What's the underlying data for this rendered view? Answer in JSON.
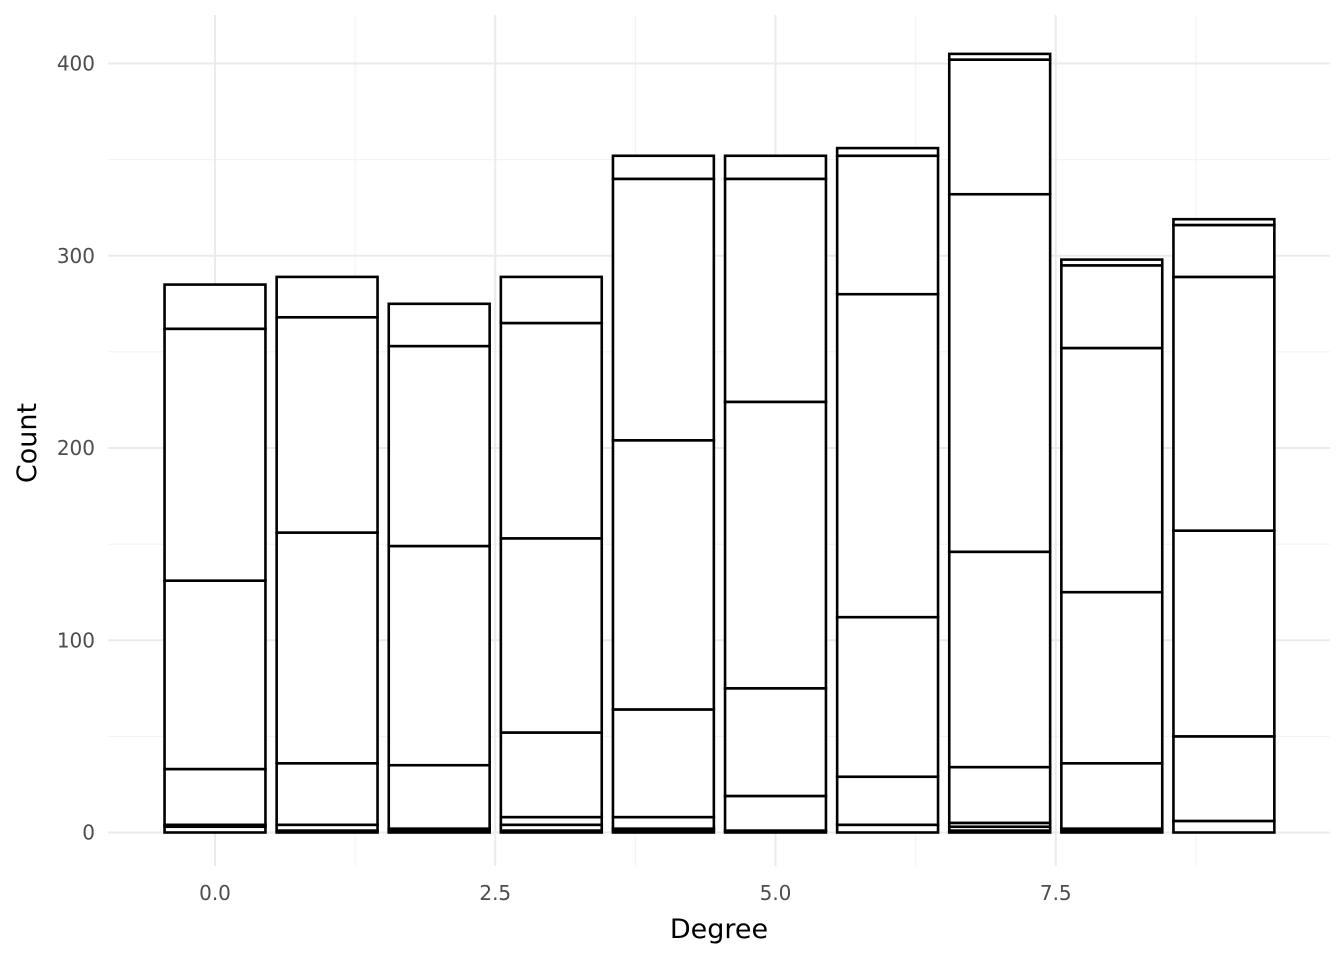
{
  "chart_data": {
    "type": "bar",
    "stacked": true,
    "xlabel": "Degree",
    "ylabel": "Count",
    "xlim": [
      -0.95,
      9.95
    ],
    "ylim": [
      -18,
      400
    ],
    "x_ticks": [
      0.0,
      2.5,
      5.0,
      7.5
    ],
    "x_tick_labels": [
      "0.0",
      "2.5",
      "5.0",
      "7.5"
    ],
    "y_ticks": [
      0,
      100,
      200,
      300,
      400
    ],
    "y_tick_labels": [
      "0",
      "100",
      "200",
      "300",
      "400"
    ],
    "grid": true,
    "bar_fill": "#ffffff",
    "bar_outline": "#000000",
    "bars": [
      {
        "x": 0,
        "stack_boundaries": [
          0,
          3,
          4,
          33,
          131,
          262,
          285
        ]
      },
      {
        "x": 1,
        "stack_boundaries": [
          0,
          1,
          4,
          36,
          156,
          268,
          289
        ]
      },
      {
        "x": 2,
        "stack_boundaries": [
          0,
          1,
          2,
          35,
          149,
          253,
          275
        ]
      },
      {
        "x": 3,
        "stack_boundaries": [
          0,
          1,
          4,
          8,
          52,
          153,
          265,
          289
        ]
      },
      {
        "x": 4,
        "stack_boundaries": [
          0,
          1,
          2,
          8,
          64,
          204,
          340,
          352
        ]
      },
      {
        "x": 5,
        "stack_boundaries": [
          0,
          1,
          19,
          75,
          224,
          340,
          352
        ]
      },
      {
        "x": 6,
        "stack_boundaries": [
          0,
          4,
          29,
          112,
          280,
          352,
          356
        ]
      },
      {
        "x": 7,
        "stack_boundaries": [
          0,
          1,
          3,
          5,
          34,
          146,
          332,
          402,
          405
        ]
      },
      {
        "x": 8,
        "stack_boundaries": [
          0,
          1,
          2,
          36,
          125,
          252,
          295,
          298
        ]
      },
      {
        "x": 9,
        "stack_boundaries": [
          0,
          6,
          50,
          157,
          289,
          316,
          319
        ]
      }
    ]
  }
}
